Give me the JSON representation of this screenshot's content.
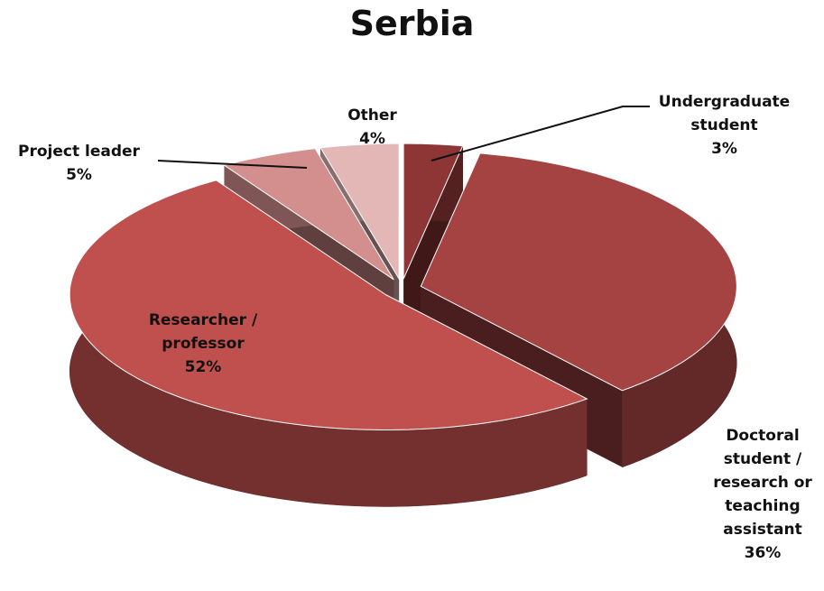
{
  "chart_data": {
    "type": "pie3d",
    "title": "Serbia",
    "categories": [
      "Undergraduate student",
      "Doctoral student / research or teaching assistant",
      "Researcher / professor",
      "Project leader",
      "Other"
    ],
    "values": [
      3,
      36,
      52,
      5,
      4
    ],
    "value_labels": [
      "3%",
      "36%",
      "52%",
      "5%",
      "4%"
    ],
    "colors": [
      "#8e3636",
      "#a54343",
      "#c0504d",
      "#d38f8d",
      "#e3b7b6"
    ]
  }
}
